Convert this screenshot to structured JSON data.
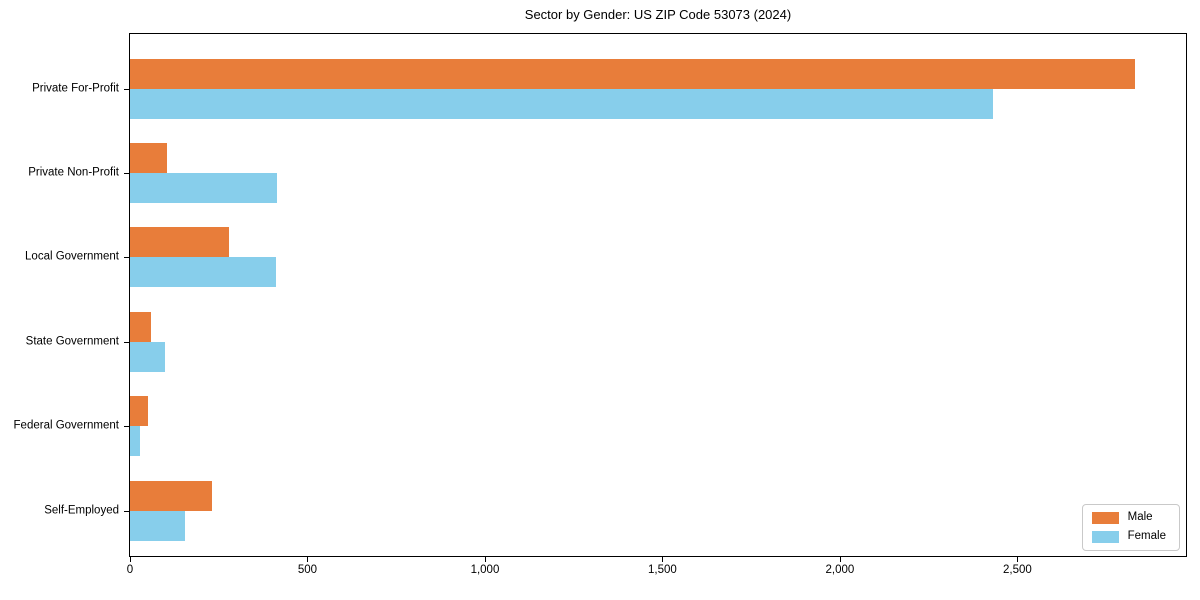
{
  "chart_data": {
    "type": "bar",
    "orientation": "horizontal",
    "title": "Sector by Gender: US ZIP Code 53073 (2024)",
    "categories": [
      "Private For-Profit",
      "Private Non-Profit",
      "Local Government",
      "State Government",
      "Federal Government",
      "Self-Employed"
    ],
    "series": [
      {
        "name": "Male",
        "color": "#e87d3a",
        "values": [
          2830,
          105,
          280,
          60,
          50,
          230
        ]
      },
      {
        "name": "Female",
        "color": "#87ceeb",
        "values": [
          2430,
          415,
          410,
          100,
          27,
          155
        ]
      }
    ],
    "xlabel": "",
    "ylabel": "",
    "xlim": [
      0,
      2975
    ],
    "xticks": [
      0,
      500,
      1000,
      1500,
      2000,
      2500
    ],
    "xtick_labels": [
      "0",
      "500",
      "1,000",
      "1,500",
      "2,000",
      "2,500"
    ],
    "grid": false,
    "legend_position": "lower right",
    "axis_color": "#000000",
    "background_color": "#ffffff"
  }
}
